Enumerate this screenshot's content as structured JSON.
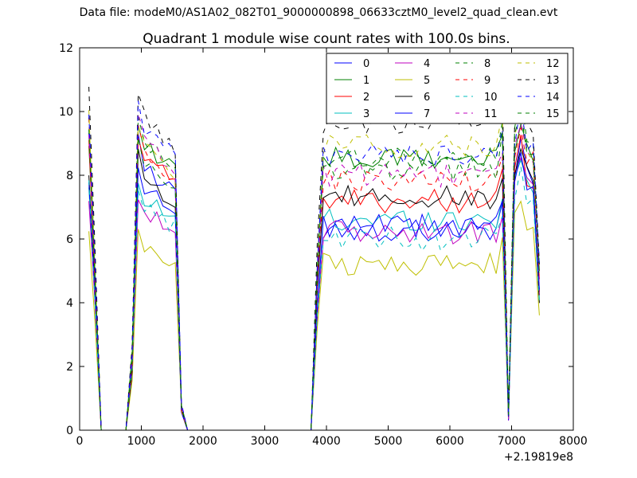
{
  "suptitle": "Data file: modeM0/AS1A02_082T01_9000000898_06633cztM0_level2_quad_clean.evt",
  "chart_data": {
    "type": "line",
    "title": "Quadrant 1 module wise count rates with 100.0s bins.",
    "xlabel": "",
    "ylabel": "",
    "x_offset_label": "+2.19819e8",
    "xlim": [
      0,
      8000
    ],
    "ylim": [
      0,
      12
    ],
    "xticks": [
      0,
      1000,
      2000,
      3000,
      4000,
      5000,
      6000,
      7000,
      8000
    ],
    "yticks": [
      0,
      2,
      4,
      6,
      8,
      10,
      12
    ],
    "grid": false,
    "legend_placement": "top-right",
    "legend_columns": 4,
    "x": [
      150,
      250,
      350,
      450,
      550,
      650,
      750,
      850,
      950,
      1050,
      1150,
      1250,
      1350,
      1450,
      1550,
      1650,
      1750,
      1850,
      1950,
      2050,
      2150,
      2250,
      2350,
      2450,
      2550,
      2650,
      2750,
      2850,
      2950,
      3050,
      3150,
      3250,
      3350,
      3450,
      3550,
      3650,
      3750,
      3850,
      3950,
      4050,
      4150,
      4250,
      4350,
      4450,
      4550,
      4650,
      4750,
      4850,
      4950,
      5050,
      5150,
      5250,
      5350,
      5450,
      5550,
      5650,
      5750,
      5850,
      5950,
      6050,
      6150,
      6250,
      6350,
      6450,
      6550,
      6650,
      6750,
      6850,
      6950,
      7050,
      7150,
      7250,
      7350,
      7450
    ],
    "series": [
      {
        "name": "0",
        "color": "#0000ff",
        "dash": "solid",
        "peak1": 8.4,
        "plateau": 6.3,
        "peak2": 9.0,
        "end": 4.5
      },
      {
        "name": "1",
        "color": "#008000",
        "dash": "solid",
        "peak1": 9.0,
        "plateau": 8.5,
        "peak2": 9.8,
        "end": 4.8
      },
      {
        "name": "2",
        "color": "#ff0000",
        "dash": "solid",
        "peak1": 8.6,
        "plateau": 7.2,
        "peak2": 9.0,
        "end": 4.3
      },
      {
        "name": "3",
        "color": "#00bfbf",
        "dash": "solid",
        "peak1": 7.4,
        "plateau": 6.6,
        "peak2": 8.6,
        "end": 4.1
      },
      {
        "name": "4",
        "color": "#bf00bf",
        "dash": "solid",
        "peak1": 6.9,
        "plateau": 6.2,
        "peak2": 8.7,
        "end": 4.0
      },
      {
        "name": "5",
        "color": "#bfbf00",
        "dash": "solid",
        "peak1": 5.8,
        "plateau": 5.2,
        "peak2": 7.3,
        "end": 3.4
      },
      {
        "name": "6",
        "color": "#000000",
        "dash": "solid",
        "peak1": 8.0,
        "plateau": 7.3,
        "peak2": 9.1,
        "end": 4.2
      },
      {
        "name": "7",
        "color": "#0000ff",
        "dash": "solid",
        "peak1": 7.6,
        "plateau": 6.4,
        "peak2": 8.8,
        "end": 4.4
      },
      {
        "name": "8",
        "color": "#008000",
        "dash": "dashed",
        "peak1": 9.3,
        "plateau": 8.5,
        "peak2": 10.3,
        "end": 5.0
      },
      {
        "name": "9",
        "color": "#ff0000",
        "dash": "dashed",
        "peak1": 8.8,
        "plateau": 7.8,
        "peak2": 9.6,
        "end": 4.7
      },
      {
        "name": "10",
        "color": "#00bfbf",
        "dash": "dashed",
        "peak1": 7.1,
        "plateau": 6.0,
        "peak2": 8.1,
        "end": 3.9
      },
      {
        "name": "11",
        "color": "#bf00bf",
        "dash": "dashed",
        "peak1": 9.2,
        "plateau": 8.0,
        "peak2": 9.7,
        "end": 4.6
      },
      {
        "name": "12",
        "color": "#bfbf00",
        "dash": "dashed",
        "peak1": 9.0,
        "plateau": 8.9,
        "peak2": 10.0,
        "end": 4.9
      },
      {
        "name": "13",
        "color": "#000000",
        "dash": "dashed",
        "peak1": 9.9,
        "plateau": 9.6,
        "peak2": 10.6,
        "end": 5.2
      },
      {
        "name": "14",
        "color": "#0000ff",
        "dash": "dashed",
        "peak1": 9.5,
        "plateau": 8.6,
        "peak2": 10.2,
        "end": 5.0
      },
      {
        "name": "15",
        "color": "#008000",
        "dash": "dashed",
        "peak1": 8.5,
        "plateau": 8.2,
        "peak2": 10.0,
        "end": 4.9
      }
    ]
  }
}
